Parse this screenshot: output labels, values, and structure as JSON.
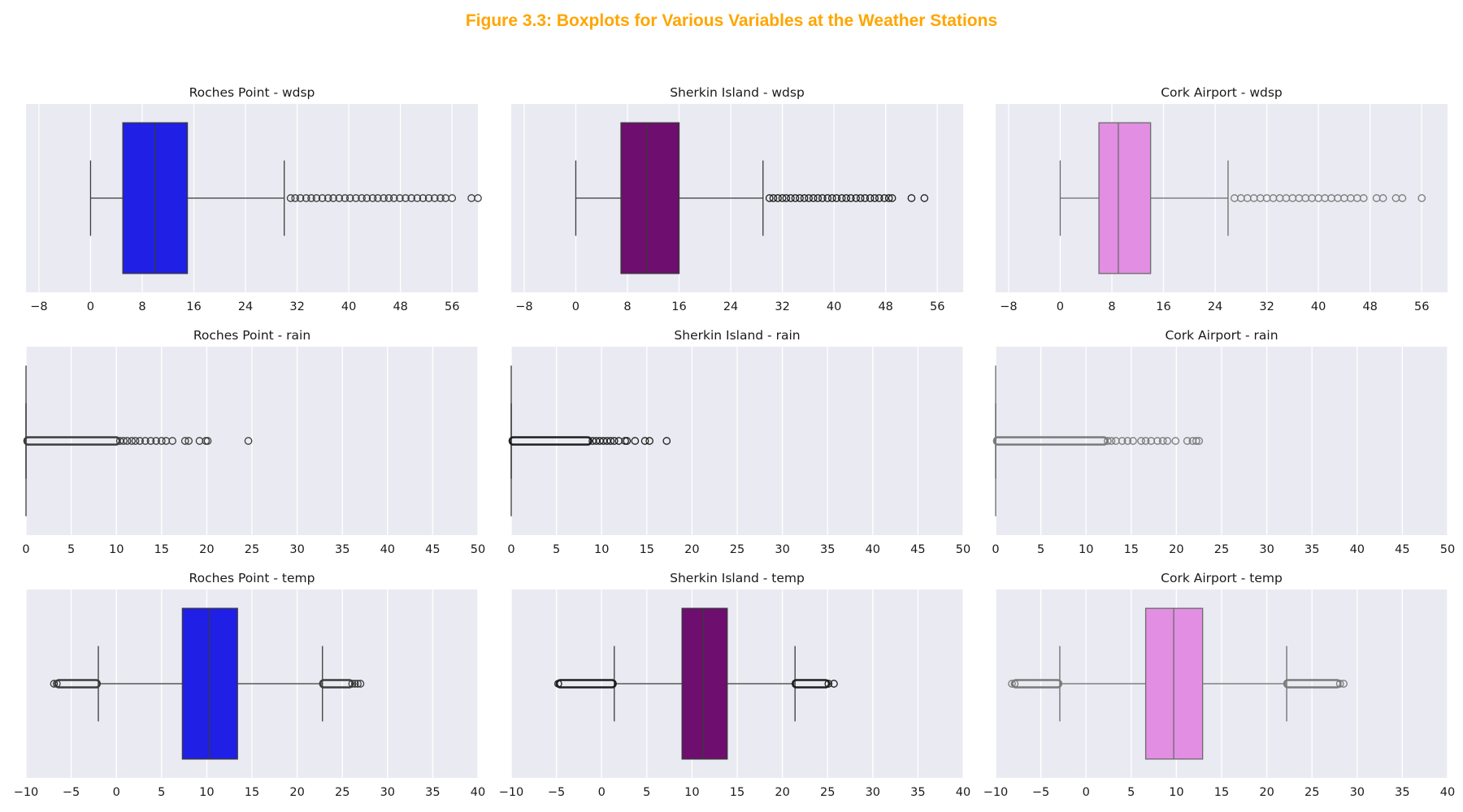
{
  "figure": {
    "title": "Figure 3.3: Boxplots for Various Variables at the Weather Stations"
  },
  "chart_data": [
    {
      "type": "boxplot",
      "title": "Roches Point - wdsp",
      "color": "#1f1fe6",
      "xlim": [
        -10,
        60
      ],
      "xticks": [
        -8,
        0,
        8,
        16,
        24,
        32,
        40,
        48,
        56
      ],
      "grid": true,
      "box": {
        "whisker_low": 0,
        "q1": 5,
        "median": 10,
        "q3": 15,
        "whisker_high": 30
      },
      "outliers": [
        31,
        31.7,
        32.5,
        33.4,
        34.2,
        35,
        35.9,
        36.8,
        37.6,
        38.5,
        39.4,
        40.2,
        41.1,
        42,
        42.8,
        43.7,
        44.5,
        45.4,
        46.2,
        47,
        47.9,
        48.8,
        49.7,
        50.6,
        51.5,
        52.4,
        53.3,
        54.2,
        55,
        56,
        59,
        60
      ]
    },
    {
      "type": "boxplot",
      "title": "Sherkin Island - wdsp",
      "color": "#6e0e6e",
      "xlim": [
        -10,
        60
      ],
      "xticks": [
        -8,
        0,
        8,
        16,
        24,
        32,
        40,
        48,
        56
      ],
      "grid": true,
      "box": {
        "whisker_low": 0,
        "q1": 7,
        "median": 11,
        "q3": 16,
        "whisker_high": 29
      },
      "outliers": [
        30,
        30.6,
        31.3,
        32,
        32.6,
        33.3,
        34,
        34.7,
        35.4,
        36.1,
        36.8,
        37.5,
        38.2,
        39,
        39.7,
        40.4,
        41.2,
        41.9,
        42.6,
        43.4,
        44.1,
        44.8,
        45.6,
        46.3,
        47,
        47.8,
        48.5,
        49,
        52,
        54
      ]
    },
    {
      "type": "boxplot",
      "title": "Cork Airport - wdsp",
      "color": "#e28ee2",
      "xlim": [
        -10,
        60
      ],
      "xticks": [
        -8,
        0,
        8,
        16,
        24,
        32,
        40,
        48,
        56
      ],
      "grid": true,
      "box": {
        "whisker_low": 0,
        "q1": 6,
        "median": 9,
        "q3": 14,
        "whisker_high": 26
      },
      "outliers": [
        27,
        28,
        29,
        30,
        31,
        32,
        33,
        34,
        35,
        36,
        37,
        38,
        39,
        40,
        41,
        42,
        43,
        44,
        45,
        46,
        47,
        49,
        50,
        52,
        53,
        56
      ]
    },
    {
      "type": "boxplot",
      "title": "Roches Point - rain",
      "color": "#1f1fe6",
      "xlim": [
        0,
        50
      ],
      "xticks": [
        0,
        5,
        10,
        15,
        20,
        25,
        30,
        35,
        40,
        45,
        50
      ],
      "grid": true,
      "box": {
        "whisker_low": 0,
        "q1": 0,
        "median": 0,
        "q3": 0,
        "whisker_high": 0
      },
      "outlier_band": [
        0,
        10
      ],
      "outliers": [
        10.4,
        10.8,
        11.2,
        11.7,
        12.1,
        12.6,
        13.2,
        13.8,
        14.4,
        15,
        15.5,
        16.2,
        17.6,
        18,
        19.2,
        19.9,
        20.1,
        24.6
      ]
    },
    {
      "type": "boxplot",
      "title": "Sherkin Island - rain",
      "color": "#6e0e6e",
      "xlim": [
        0,
        50
      ],
      "xticks": [
        0,
        5,
        10,
        15,
        20,
        25,
        30,
        35,
        40,
        45,
        50
      ],
      "grid": true,
      "box": {
        "whisker_low": 0,
        "q1": 0,
        "median": 0,
        "q3": 0,
        "whisker_high": 0
      },
      "outlier_band": [
        0,
        8.5
      ],
      "outliers": [
        9,
        9.4,
        9.8,
        10.2,
        10.6,
        11,
        11.4,
        11.9,
        12.6,
        12.8,
        13.7,
        14.8,
        15.3,
        17.2
      ]
    },
    {
      "type": "boxplot",
      "title": "Cork Airport - rain",
      "color": "#e28ee2",
      "xlim": [
        0,
        50
      ],
      "xticks": [
        0,
        5,
        10,
        15,
        20,
        25,
        30,
        35,
        40,
        45,
        50
      ],
      "grid": true,
      "box": {
        "whisker_low": 0,
        "q1": 0,
        "median": 0,
        "q3": 0,
        "whisker_high": 0
      },
      "outlier_band": [
        0,
        12
      ],
      "outliers": [
        12.4,
        12.8,
        13.3,
        14,
        14.6,
        15.2,
        16.1,
        16.6,
        17.2,
        17.9,
        18.5,
        19,
        19.9,
        21.2,
        21.8,
        22.2,
        22.5
      ]
    },
    {
      "type": "boxplot",
      "title": "Roches Point - temp",
      "color": "#1f1fe6",
      "xlim": [
        -10,
        40
      ],
      "xticks": [
        -10,
        -5,
        0,
        5,
        10,
        15,
        20,
        25,
        30,
        35,
        40
      ],
      "grid": true,
      "box": {
        "whisker_low": -2,
        "q1": 7.3,
        "median": 10.3,
        "q3": 13.4,
        "whisker_high": 22.8
      },
      "outlier_bands": [
        [
          -6.4,
          -2.2
        ],
        [
          22.9,
          25.8
        ]
      ],
      "outliers": [
        -6.9,
        -6.6,
        26.1,
        26.4,
        26.7,
        27
      ]
    },
    {
      "type": "boxplot",
      "title": "Sherkin Island - temp",
      "color": "#6e0e6e",
      "xlim": [
        -10,
        40
      ],
      "xticks": [
        -10,
        -5,
        0,
        5,
        10,
        15,
        20,
        25,
        30,
        35,
        40
      ],
      "grid": true,
      "box": {
        "whisker_low": 1.4,
        "q1": 8.9,
        "median": 11.2,
        "q3": 13.9,
        "whisker_high": 21.4
      },
      "outlier_bands": [
        [
          -4.6,
          1.2
        ],
        [
          21.5,
          24.8
        ]
      ],
      "outliers": [
        -4.8,
        25.1,
        25.7
      ]
    },
    {
      "type": "boxplot",
      "title": "Cork Airport - temp",
      "color": "#e28ee2",
      "xlim": [
        -10,
        40
      ],
      "xticks": [
        -10,
        -5,
        0,
        5,
        10,
        15,
        20,
        25,
        30,
        35,
        40
      ],
      "grid": true,
      "box": {
        "whisker_low": -2.9,
        "q1": 6.6,
        "median": 9.7,
        "q3": 12.9,
        "whisker_high": 22.2
      },
      "outlier_bands": [
        [
          -7.8,
          -3.1
        ],
        [
          22.3,
          27.8
        ]
      ],
      "outliers": [
        -8.2,
        -7.9,
        28.1,
        28.5
      ]
    }
  ]
}
